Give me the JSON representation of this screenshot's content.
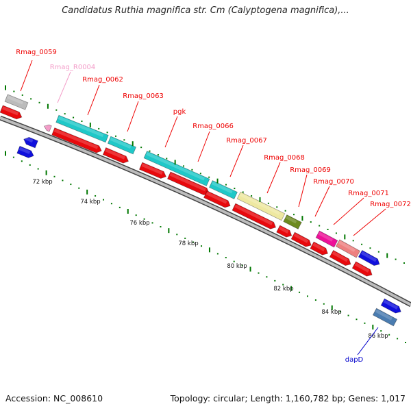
{
  "title": "Candidatus Ruthia magnifica str. Cm (Calyptogena magnifica),...",
  "footer": {
    "accession": "Accession: NC_008610",
    "topology": "Topology: circular; Length: 1,160,782 bp; Genes: 1,017"
  },
  "colors": {
    "red": "#e8090d",
    "cyan": "#1fc8c8",
    "gray": "#bbbbbb",
    "blue": "#1010dd",
    "steelblue": "#4a7cb0",
    "khaki": "#eee8a0",
    "olive": "#6d8a1f",
    "magenta": "#ee1099",
    "salmon": "#ee8080",
    "pink": "#f39cc8",
    "tick": "#007700",
    "label_red": "#ee0000",
    "label_pink": "#f39cc8",
    "label_blue": "#0000cc"
  },
  "scale_labels": [
    "72 kbp",
    "74 kbp",
    "76 kbp",
    "78 kbp",
    "80 kbp",
    "82 kbp",
    "84 kbp",
    "86 kbp"
  ],
  "gene_labels": [
    "Rmag_0059",
    "Rmag_R0004",
    "Rmag_0062",
    "Rmag_0063",
    "pgk",
    "Rmag_0066",
    "Rmag_0067",
    "Rmag_0068",
    "Rmag_0069",
    "Rmag_0070",
    "Rmag_0071",
    "Rmag_0072",
    "dapD"
  ]
}
